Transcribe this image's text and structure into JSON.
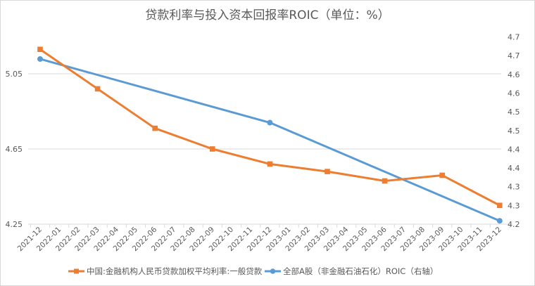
{
  "chart_data": {
    "type": "line",
    "title": "贷款利率与投入资本回报率ROIC（单位：%）",
    "categories": [
      "2021-12",
      "2022-01",
      "2022-02",
      "2022-03",
      "2022-04",
      "2022-05",
      "2022-06",
      "2022-07",
      "2022-08",
      "2022-09",
      "2022-10",
      "2022-11",
      "2022-12",
      "2023-01",
      "2023-02",
      "2023-03",
      "2023-04",
      "2023-05",
      "2023-06",
      "2023-07",
      "2023-08",
      "2023-09",
      "2023-10",
      "2023-11",
      "2023-12"
    ],
    "left_axis": {
      "ylim": [
        4.25,
        5.25
      ],
      "ticks": [
        4.25,
        4.65,
        5.05
      ],
      "tick_labels": [
        "4.25",
        "4.65",
        "5.05"
      ]
    },
    "right_axis": {
      "ylim": [
        4.225,
        4.725
      ],
      "ticks": [
        4.225,
        4.275,
        4.325,
        4.375,
        4.425,
        4.475,
        4.525,
        4.575,
        4.625,
        4.675,
        4.725
      ],
      "tick_labels": [
        "4.2",
        "4.3",
        "4.3",
        "4.4",
        "4.4",
        "4.5",
        "4.5",
        "4.6",
        "4.6",
        "4.7",
        "4.7"
      ]
    },
    "grid": true,
    "legend_position": "bottom",
    "series": [
      {
        "name": "中国:金融机构人民币贷款加权平均利率:一般贷款",
        "axis": "left",
        "color": "#ed7d31",
        "marker": "square",
        "x": [
          "2021-12",
          "2022-03",
          "2022-06",
          "2022-09",
          "2022-12",
          "2023-03",
          "2023-06",
          "2023-09",
          "2023-12"
        ],
        "values": [
          5.18,
          4.97,
          4.76,
          4.65,
          4.57,
          4.53,
          4.48,
          4.51,
          4.35
        ]
      },
      {
        "name": "全部A股（非金融石油石化）ROIC（右轴）",
        "axis": "right",
        "color": "#5b9bd5",
        "marker": "circle",
        "x": [
          "2021-12",
          "2022-12",
          "2023-12"
        ],
        "values": [
          4.666,
          4.496,
          4.234
        ]
      }
    ]
  }
}
